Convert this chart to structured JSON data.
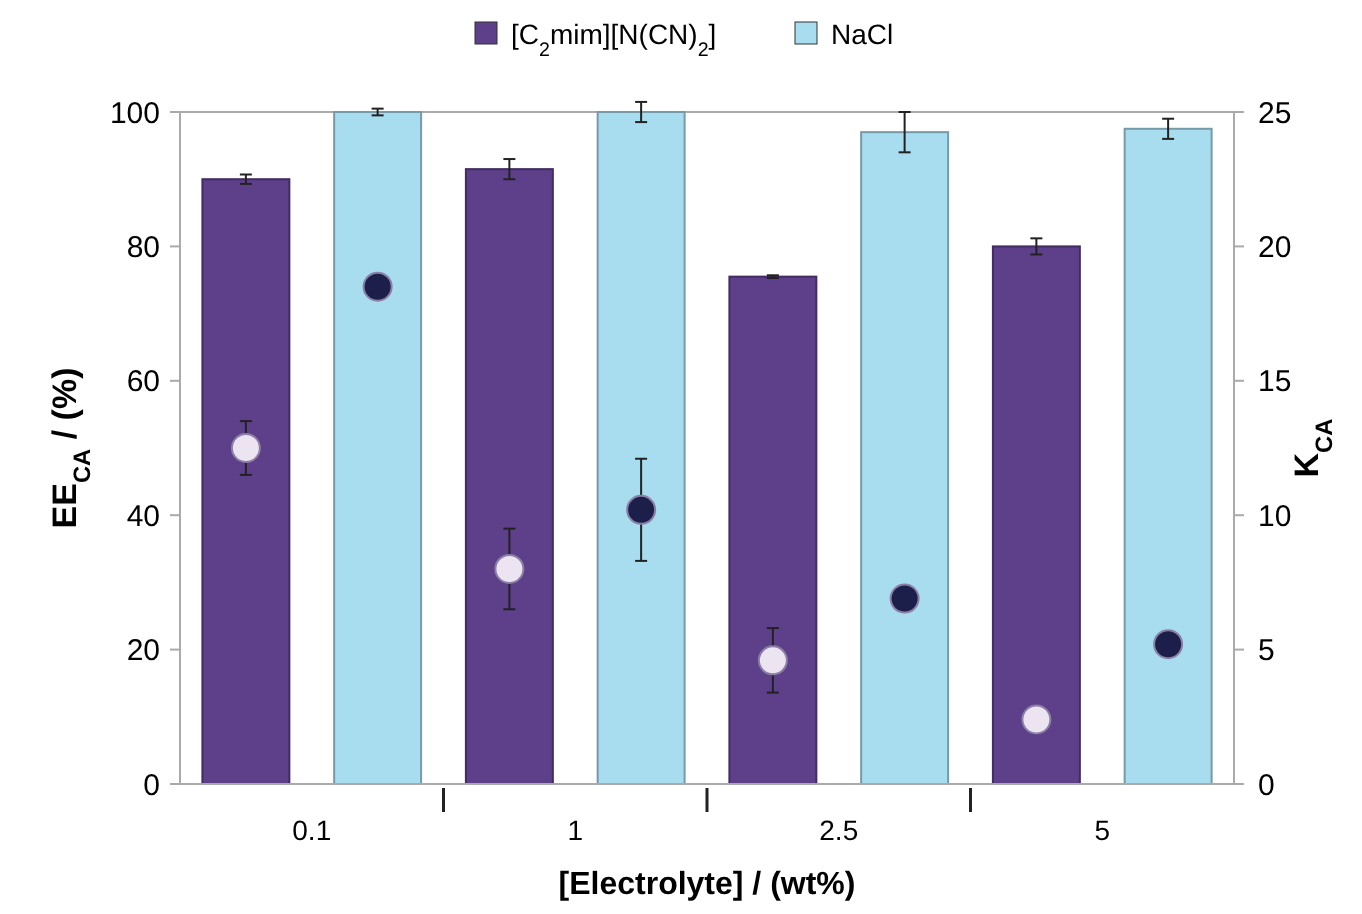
{
  "chart_data": {
    "type": "bar",
    "xlabel": "[Electrolyte] / (wt%)",
    "ylabel": "EE$_{CA}$ / (%)",
    "y2label": "K$_{CA}$",
    "categories": [
      "0.1",
      "1",
      "2.5",
      "5"
    ],
    "series": [
      {
        "name": "[C$_{2}$mim][N(CN)$_{2}$]",
        "color": "#5e3f8a",
        "values": [
          90,
          91.5,
          75.5,
          80
        ],
        "errors": [
          0.7,
          1.5,
          0.2,
          1.2
        ]
      },
      {
        "name": "NaCl",
        "color": "#a8dcef",
        "values": [
          100,
          100,
          97,
          97.5
        ],
        "errors": [
          0.5,
          1.5,
          3,
          1.5
        ]
      },
      {
        "type": "scatter",
        "axis": "y2",
        "color": "#ece4f0",
        "x": [
          "0.1",
          "1",
          "2.5",
          "5"
        ],
        "values": [
          12.5,
          8,
          4.6,
          2.4
        ],
        "errors": [
          1,
          1.5,
          1.2,
          null
        ]
      },
      {
        "type": "scatter",
        "axis": "y2",
        "color": "#1b1f4a",
        "x": [
          "0.1",
          "1",
          "2.5",
          "5"
        ],
        "values": [
          18.5,
          10.2,
          6.9,
          5.2
        ],
        "errors": [
          null,
          1.9,
          0.3,
          0.2
        ]
      }
    ],
    "ylim": [
      0,
      100
    ],
    "yticks": [
      0,
      20,
      40,
      60,
      80,
      100
    ],
    "y2lim": [
      0,
      25
    ],
    "y2ticks": [
      0,
      5,
      10,
      15,
      20,
      25
    ],
    "marker": "circle",
    "legend": "top",
    "grid": false
  }
}
